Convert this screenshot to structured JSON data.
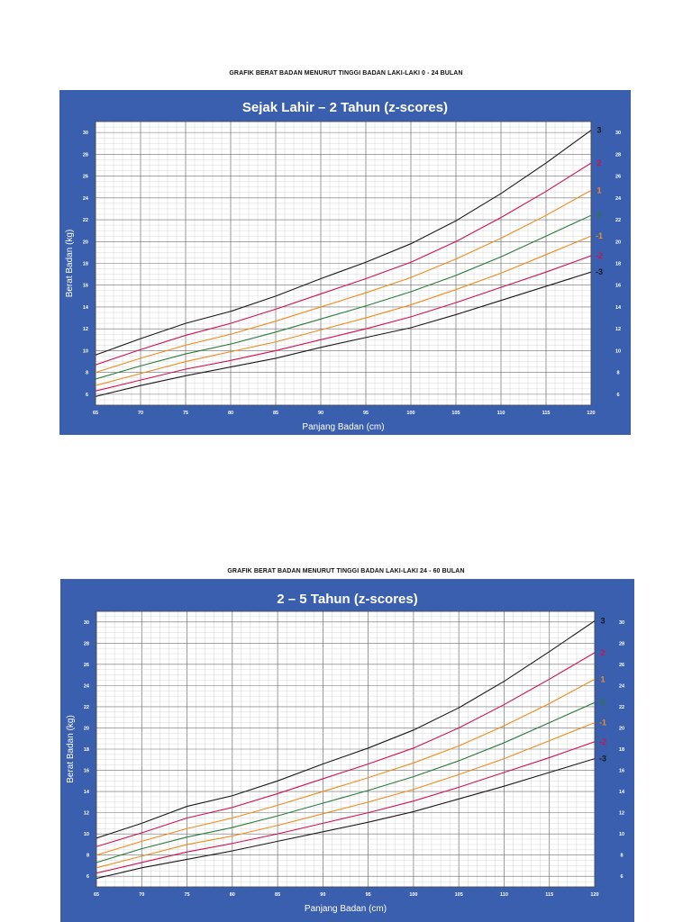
{
  "page": {
    "caption_top": "GRAFIK BERAT BADAN MENURUT TINGGI BADAN LAKI-LAKI 0 - 24 BULAN",
    "caption_bottom": "GRAFIK BERAT BADAN MENURUT TINGGI BADAN LAKI-LAKI 24 - 60 BULAN"
  },
  "colors": {
    "panel": "#3a5fae",
    "plot_bg": "#ffffff",
    "grid_minor": "#c8c8c8",
    "grid_major": "#6e6e6e",
    "z3": "#1a1a1a",
    "z2": "#d0104c",
    "z1": "#f08a1c",
    "z0": "#2a7a3a"
  },
  "chart_data": [
    {
      "type": "line",
      "title": "Sejak Lahir – 2 Tahun (z-scores)",
      "xlabel": "Panjang Badan (cm)",
      "ylabel": "Berat Badan (kg)",
      "xlim": [
        65,
        120
      ],
      "ylim": [
        5,
        31
      ],
      "x_ticks": [
        65,
        70,
        75,
        80,
        85,
        90,
        95,
        100,
        105,
        110,
        115,
        120
      ],
      "y_ticks": [
        6,
        8,
        10,
        12,
        14,
        16,
        18,
        20,
        22,
        24,
        26,
        28,
        30
      ],
      "grid": true,
      "x": [
        65,
        70,
        75,
        80,
        85,
        90,
        95,
        100,
        105,
        110,
        115,
        120
      ],
      "series": [
        {
          "name": "3",
          "color": "#1a1a1a",
          "values": [
            9.6,
            11.1,
            12.5,
            13.6,
            15.0,
            16.6,
            18.1,
            19.8,
            21.9,
            24.4,
            27.2,
            30.2
          ]
        },
        {
          "name": "2",
          "color": "#d0104c",
          "values": [
            8.7,
            10.1,
            11.4,
            12.5,
            13.8,
            15.2,
            16.6,
            18.1,
            20.0,
            22.2,
            24.6,
            27.2
          ]
        },
        {
          "name": "1",
          "color": "#f08a1c",
          "values": [
            8.0,
            9.3,
            10.5,
            11.5,
            12.7,
            14.0,
            15.3,
            16.7,
            18.4,
            20.3,
            22.4,
            24.7
          ]
        },
        {
          "name": "0",
          "color": "#2a7a3a",
          "values": [
            7.4,
            8.6,
            9.7,
            10.6,
            11.7,
            12.9,
            14.1,
            15.4,
            16.9,
            18.6,
            20.5,
            22.4
          ]
        },
        {
          "name": "-1",
          "color": "#f08a1c",
          "values": [
            6.8,
            7.9,
            9.0,
            9.9,
            10.8,
            11.9,
            13.0,
            14.2,
            15.6,
            17.1,
            18.8,
            20.5
          ]
        },
        {
          "name": "-2",
          "color": "#d0104c",
          "values": [
            6.3,
            7.3,
            8.3,
            9.1,
            10.0,
            11.0,
            12.0,
            13.1,
            14.4,
            15.8,
            17.2,
            18.7
          ]
        },
        {
          "name": "-3",
          "color": "#1a1a1a",
          "values": [
            5.8,
            6.8,
            7.7,
            8.5,
            9.3,
            10.3,
            11.2,
            12.1,
            13.3,
            14.6,
            15.9,
            17.2
          ]
        }
      ]
    },
    {
      "type": "line",
      "title": "2 – 5 Tahun (z-scores)",
      "xlabel": "Panjang Badan (cm)",
      "ylabel": "Berat Badan (kg)",
      "xlim": [
        65,
        120
      ],
      "ylim": [
        5,
        31
      ],
      "x_ticks": [
        65,
        70,
        75,
        80,
        85,
        90,
        95,
        100,
        105,
        110,
        115,
        120
      ],
      "y_ticks": [
        6,
        8,
        10,
        12,
        14,
        16,
        18,
        20,
        22,
        24,
        26,
        28,
        30
      ],
      "grid": true,
      "x": [
        65,
        70,
        75,
        80,
        85,
        90,
        95,
        100,
        105,
        110,
        115,
        120
      ],
      "series": [
        {
          "name": "3",
          "color": "#1a1a1a",
          "values": [
            9.6,
            11.0,
            12.6,
            13.6,
            15.0,
            16.6,
            18.1,
            19.8,
            21.9,
            24.4,
            27.2,
            30.1
          ]
        },
        {
          "name": "2",
          "color": "#d0104c",
          "values": [
            8.8,
            10.1,
            11.5,
            12.5,
            13.8,
            15.2,
            16.6,
            18.1,
            20.0,
            22.2,
            24.6,
            27.1
          ]
        },
        {
          "name": "1",
          "color": "#f08a1c",
          "values": [
            8.0,
            9.3,
            10.5,
            11.5,
            12.7,
            14.0,
            15.3,
            16.7,
            18.3,
            20.2,
            22.3,
            24.6
          ]
        },
        {
          "name": "0",
          "color": "#2a7a3a",
          "values": [
            7.3,
            8.6,
            9.7,
            10.6,
            11.7,
            12.9,
            14.1,
            15.4,
            16.9,
            18.6,
            20.5,
            22.4
          ]
        },
        {
          "name": "-1",
          "color": "#f08a1c",
          "values": [
            6.8,
            7.9,
            9.0,
            9.8,
            10.8,
            11.9,
            13.0,
            14.2,
            15.6,
            17.1,
            18.8,
            20.5
          ]
        },
        {
          "name": "-2",
          "color": "#d0104c",
          "values": [
            6.3,
            7.3,
            8.3,
            9.1,
            10.0,
            11.0,
            12.0,
            13.1,
            14.4,
            15.8,
            17.2,
            18.7
          ]
        },
        {
          "name": "-3",
          "color": "#1a1a1a",
          "values": [
            5.8,
            6.8,
            7.6,
            8.4,
            9.3,
            10.2,
            11.1,
            12.1,
            13.3,
            14.5,
            15.8,
            17.1
          ]
        }
      ]
    }
  ]
}
